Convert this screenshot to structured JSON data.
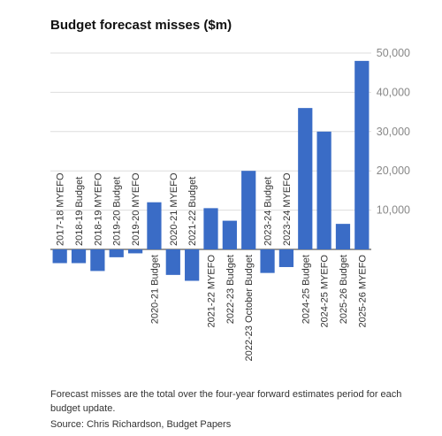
{
  "chart_data": {
    "type": "bar",
    "title": "Budget forecast misses ($m)",
    "categories": [
      "2017-18 MYEFO",
      "2018-19 Budget",
      "2018-19 MYEFO",
      "2019-20 Budget",
      "2019-20 MYEFO",
      "2020-21 Budget",
      "2020-21 MYEFO",
      "2021-22 Budget",
      "2021-22 MYEFO",
      "2022-23 Budget",
      "2022-23 October Budget",
      "2023-24 Budget",
      "2023-24 MYEFO",
      "2024-25 Budget",
      "2024-25 MYEFO",
      "2025-26 Budget",
      "2025-26 MYEFO"
    ],
    "values": [
      -3500,
      -3500,
      -5500,
      -2000,
      -1000,
      12000,
      -6500,
      -8000,
      10500,
      7300,
      20000,
      -6000,
      -4500,
      36000,
      30000,
      6500,
      48000
    ],
    "color": "#3a6cc6",
    "ylim": [
      -10000,
      52000
    ],
    "yticks": [
      {
        "value": 10000,
        "label": "10,000"
      },
      {
        "value": 20000,
        "label": "20,000"
      },
      {
        "value": 30000,
        "label": "30,000"
      },
      {
        "value": 40000,
        "label": "40,000"
      },
      {
        "value": 50000,
        "label": "50,000"
      }
    ],
    "grid": true,
    "footnote": [
      "Forecast misses are the total over the four-year forward estimates period for each",
      "budget update."
    ],
    "source": "Source: Chris Richardson, Budget Papers"
  }
}
